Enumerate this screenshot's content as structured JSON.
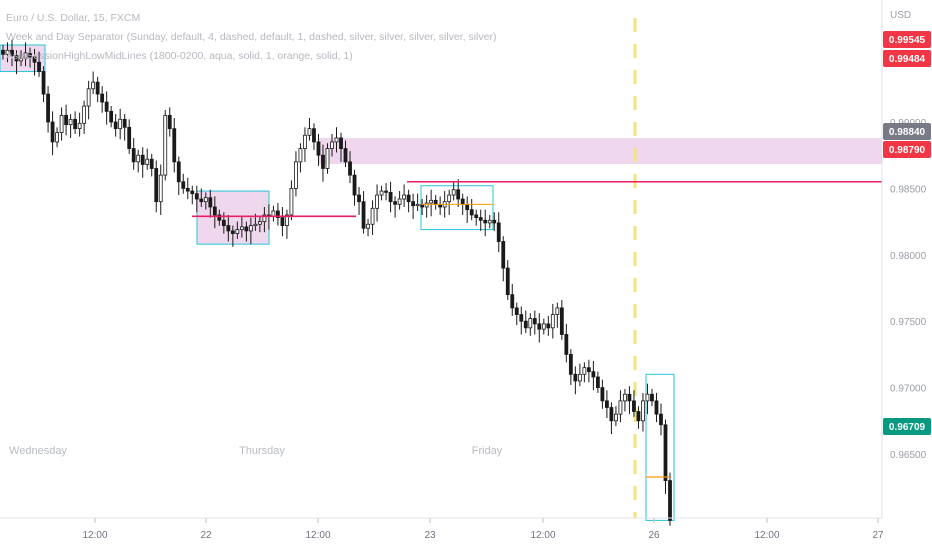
{
  "legend": {
    "symbol": "Euro / U.S. Dollar, 15, FXCM",
    "indicator1": "Week and Day Separator (Sunday, default, 4, dashed, default, 1, dashed, silver, silver, silver, silver, silver)",
    "indicator2": "AsiaSessionHighLowMidLines (1800-0200, aqua, solid, 1, orange, solid, 1)"
  },
  "currency": "USD",
  "colors": {
    "up": "#26a69a",
    "down": "#000000",
    "candle": "#1a1a1a",
    "session_box": "#26c6da",
    "session_fill": "#efd8ee",
    "red_line": "#e91e63",
    "orange": "#ff9800",
    "separator": "#f5e27a",
    "badge_red": "#f23645",
    "badge_grey": "#787b86",
    "badge_green": "#089981"
  },
  "chart_data": {
    "type": "candlestick",
    "ylim": [
      0.9608,
      0.9957
    ],
    "y_ticks": [
      "0.99000",
      "0.98500",
      "0.98000",
      "0.97500",
      "0.97000",
      "0.96500"
    ],
    "y_tick_values": [
      0.99,
      0.985,
      0.98,
      0.975,
      0.97,
      0.965
    ],
    "x_ticks": [
      "12:00",
      "22",
      "12:00",
      "23",
      "12:00",
      "26",
      "12:00",
      "27"
    ],
    "day_labels": [
      "Wednesday",
      "Thursday",
      "Friday"
    ],
    "price_badges": [
      {
        "label": "0.99545",
        "value": 0.99545,
        "color": "#f23645"
      },
      {
        "label": "0.99484",
        "value": 0.99484,
        "color": "#f23645"
      },
      {
        "label": "0.98840",
        "value": 0.9884,
        "color": "#787b86"
      },
      {
        "label": "0.98790",
        "value": 0.9879,
        "color": "#f23645"
      },
      {
        "label": "0.96709",
        "value": 0.96709,
        "color": "#089981"
      }
    ],
    "key_levels": [
      0.9855,
      0.9829,
      0.9838
    ],
    "closes": [
      0.9951,
      0.9954,
      0.995,
      0.9946,
      0.9948,
      0.9952,
      0.9949,
      0.9945,
      0.9938,
      0.9921,
      0.99,
      0.9885,
      0.9892,
      0.9905,
      0.9898,
      0.9902,
      0.9895,
      0.9899,
      0.9912,
      0.9925,
      0.993,
      0.9921,
      0.9915,
      0.9908,
      0.99,
      0.9895,
      0.9902,
      0.9896,
      0.988,
      0.987,
      0.9875,
      0.9868,
      0.9872,
      0.9865,
      0.984,
      0.986,
      0.9905,
      0.9895,
      0.987,
      0.9855,
      0.985,
      0.9848,
      0.9846,
      0.9842,
      0.984,
      0.9843,
      0.9836,
      0.983,
      0.9826,
      0.9822,
      0.9818,
      0.9816,
      0.9819,
      0.9821,
      0.9818,
      0.9822,
      0.9823,
      0.9825,
      0.983,
      0.9829,
      0.9833,
      0.9828,
      0.9822,
      0.983,
      0.985,
      0.987,
      0.988,
      0.989,
      0.9895,
      0.9885,
      0.9875,
      0.9865,
      0.988,
      0.9885,
      0.9888,
      0.988,
      0.987,
      0.986,
      0.9845,
      0.984,
      0.982,
      0.9823,
      0.9835,
      0.9845,
      0.9848,
      0.9847,
      0.984,
      0.9838,
      0.9842,
      0.9845,
      0.984,
      0.9837,
      0.9838,
      0.9836,
      0.9839,
      0.9841,
      0.9838,
      0.9836,
      0.984,
      0.9845,
      0.9849,
      0.9842,
      0.9838,
      0.9834,
      0.983,
      0.9828,
      0.9826,
      0.9824,
      0.9826,
      0.9824,
      0.981,
      0.979,
      0.977,
      0.976,
      0.9755,
      0.975,
      0.9745,
      0.9752,
      0.9748,
      0.9744,
      0.9748,
      0.9745,
      0.9755,
      0.976,
      0.974,
      0.9725,
      0.971,
      0.9705,
      0.971,
      0.9715,
      0.9712,
      0.9708,
      0.97,
      0.969,
      0.9685,
      0.9675,
      0.968,
      0.969,
      0.9695,
      0.969,
      0.9682,
      0.9675,
      0.969,
      0.9695,
      0.969,
      0.968,
      0.9672,
      0.963,
      0.96
    ]
  }
}
